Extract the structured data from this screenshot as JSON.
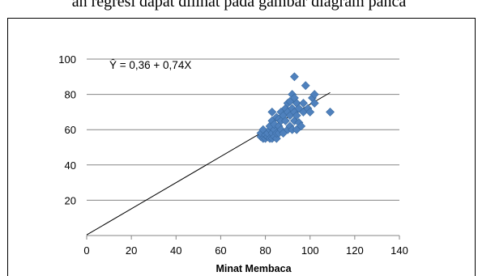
{
  "caption": "an regresi dapat dilihat pada gambar diagram panca",
  "chart_data": {
    "type": "scatter",
    "title": "",
    "xlabel": "Minat Membaca",
    "ylabel": "",
    "xlim": [
      0,
      140
    ],
    "ylim": [
      0,
      100
    ],
    "x_ticks": [
      "0",
      "20",
      "40",
      "60",
      "80",
      "100",
      "120",
      "140"
    ],
    "y_ticks": [
      "",
      "20",
      "40",
      "60",
      "80",
      "100"
    ],
    "gridlines": "horizontal",
    "equation_label": "Ŷ = 0,36 + 0,74X",
    "regression": {
      "intercept": 0.36,
      "slope": 0.74,
      "x_start": 0,
      "x_end": 109
    },
    "point_color": "#4F81BD",
    "line_color": "#000000",
    "points": [
      [
        78,
        56
      ],
      [
        78,
        58
      ],
      [
        79,
        55
      ],
      [
        79,
        60
      ],
      [
        80,
        55
      ],
      [
        80,
        57
      ],
      [
        81,
        56
      ],
      [
        81,
        58
      ],
      [
        82,
        55
      ],
      [
        82,
        60
      ],
      [
        82,
        62
      ],
      [
        83,
        55
      ],
      [
        83,
        58
      ],
      [
        83,
        65
      ],
      [
        83,
        70
      ],
      [
        84,
        56
      ],
      [
        84,
        60
      ],
      [
        84,
        63
      ],
      [
        85,
        55
      ],
      [
        85,
        58
      ],
      [
        85,
        67
      ],
      [
        86,
        58
      ],
      [
        86,
        62
      ],
      [
        86,
        66
      ],
      [
        87,
        60
      ],
      [
        87,
        65
      ],
      [
        87,
        70
      ],
      [
        88,
        68
      ],
      [
        88,
        58
      ],
      [
        89,
        65
      ],
      [
        89,
        72
      ],
      [
        90,
        60
      ],
      [
        90,
        70
      ],
      [
        90,
        75
      ],
      [
        91,
        62
      ],
      [
        91,
        68
      ],
      [
        91,
        76
      ],
      [
        92,
        60
      ],
      [
        92,
        72
      ],
      [
        92,
        80
      ],
      [
        93,
        65
      ],
      [
        93,
        70
      ],
      [
        93,
        78
      ],
      [
        93,
        90
      ],
      [
        94,
        60
      ],
      [
        94,
        68
      ],
      [
        94,
        75
      ],
      [
        95,
        64
      ],
      [
        95,
        72
      ],
      [
        96,
        62
      ],
      [
        97,
        70
      ],
      [
        97,
        75
      ],
      [
        98,
        85
      ],
      [
        99,
        72
      ],
      [
        100,
        70
      ],
      [
        101,
        78
      ],
      [
        102,
        75
      ],
      [
        102,
        80
      ],
      [
        109,
        70
      ]
    ]
  }
}
